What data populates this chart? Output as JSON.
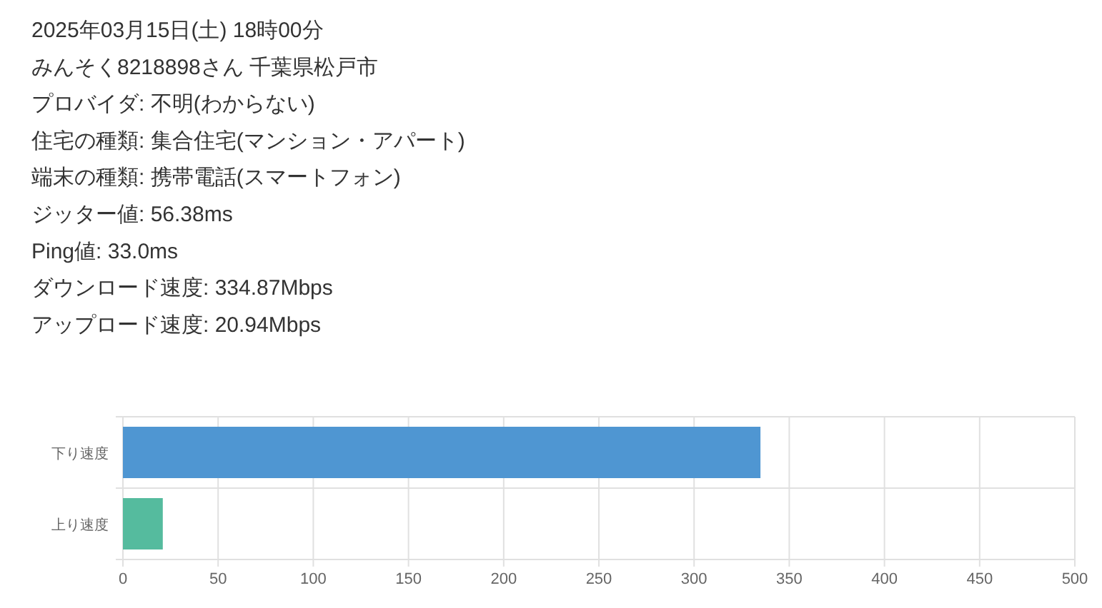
{
  "chart_data": [
    {
      "type": "other",
      "annotations": [
        "2025年03月15日(土) 18時00分",
        "みんそく8218898さん 千葉県松戸市",
        "プロバイダ: 不明(わからない)",
        "住宅の種類: 集合住宅(マンション・アパート)",
        "端末の種類: 携帯電話(スマートフォン)",
        "ジッター値: 56.38ms",
        "Ping値: 33.0ms",
        "ダウンロード速度: 334.87Mbps",
        "アップロード速度: 20.94Mbps"
      ]
    },
    {
      "type": "bar",
      "orientation": "horizontal",
      "categories": [
        "下り速度",
        "上り速度"
      ],
      "values": [
        334.87,
        20.94
      ],
      "colors": [
        "#4f96d2",
        "#55bb9e"
      ],
      "xlim": [
        0,
        500
      ],
      "xticks": [
        0,
        50,
        100,
        150,
        200,
        250,
        300,
        350,
        400,
        450,
        500
      ],
      "grid": true
    }
  ]
}
